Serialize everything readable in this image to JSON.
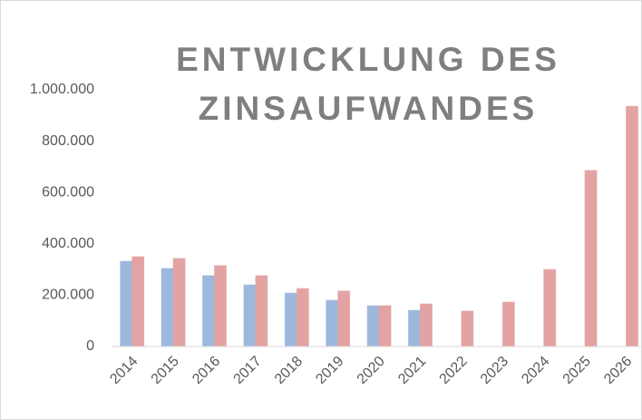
{
  "chart_data": {
    "type": "bar",
    "title": "ENTWICKLUNG DES ZINSAUFWANDES",
    "categories": [
      "2014",
      "2015",
      "2016",
      "2017",
      "2018",
      "2019",
      "2020",
      "2021",
      "2022",
      "2023",
      "2024",
      "2025",
      "2026"
    ],
    "series": [
      {
        "color": "#9db8dc",
        "values": [
          332000,
          304000,
          276000,
          240000,
          208000,
          180000,
          159000,
          141000,
          null,
          null,
          null,
          null,
          null
        ]
      },
      {
        "color": "#e3a3a3",
        "values": [
          350000,
          343000,
          315000,
          276000,
          226000,
          216000,
          159000,
          166000,
          138000,
          173000,
          300000,
          686000,
          936000
        ]
      }
    ],
    "ylim": [
      0,
      1000000
    ],
    "yticks": [
      0,
      {
        "value": 200000,
        "label": "200.000"
      },
      {
        "value": 400000,
        "label": "400.000"
      },
      {
        "value": 600000,
        "label": "600.000"
      },
      {
        "value": 800000,
        "label": "800.000"
      },
      {
        "value": 1000000,
        "label": "1.000.000"
      }
    ],
    "grid": false
  }
}
